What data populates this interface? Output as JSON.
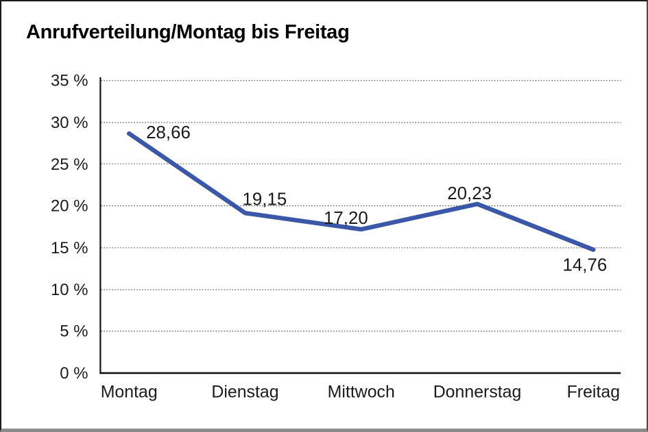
{
  "title": "Anrufverteilung/Montag bis Freitag",
  "chart_data": {
    "type": "line",
    "title": "Anrufverteilung/Montag bis Freitag",
    "categories": [
      "Montag",
      "Dienstag",
      "Mittwoch",
      "Donnerstag",
      "Freitag"
    ],
    "values": [
      28.66,
      19.15,
      17.2,
      20.23,
      14.76
    ],
    "point_labels": [
      "28,66",
      "19,15",
      "17,20",
      "20,23",
      "14,76"
    ],
    "y_ticks": [
      "35 %",
      "30 %",
      "25 %",
      "20 %",
      "15 %",
      "10 %",
      "5 %",
      "0 %"
    ],
    "ylim": [
      0,
      35
    ],
    "y_step": 5,
    "xlabel": "",
    "ylabel": "",
    "grid": "dotted-horizontal",
    "legend": "none",
    "line_color": "#3a58a7"
  },
  "colors": {
    "line": "#3a58a7",
    "text": "#1a1a1a",
    "background": "#ffffff"
  }
}
